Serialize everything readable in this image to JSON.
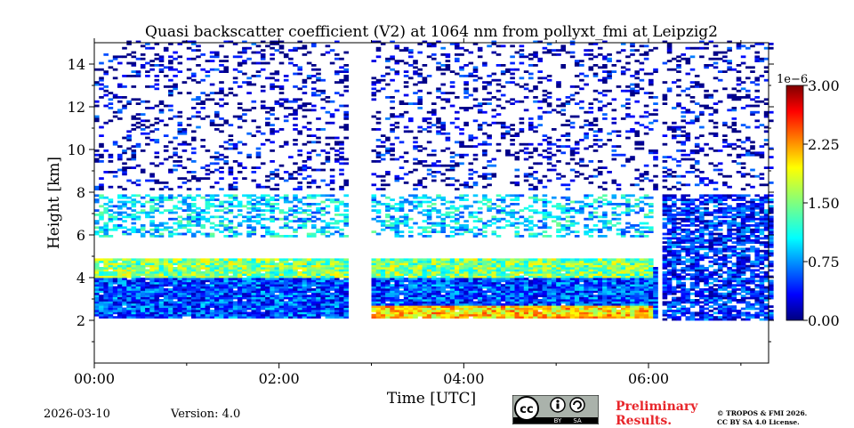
{
  "chart_data": {
    "type": "heatmap",
    "title": "Quasi backscatter coefficient (V2) at 1064 nm from pollyxt_fmi at Leipzig2",
    "xlabel": "Time [UTC]",
    "ylabel": "Height [km]",
    "x_unit": "hours UTC",
    "xlim": [
      0,
      7.3
    ],
    "ylim": [
      0,
      15
    ],
    "x_ticks": [
      0,
      2,
      4,
      6
    ],
    "x_tick_labels": [
      "00:00",
      "02:00",
      "04:00",
      "06:00"
    ],
    "y_ticks": [
      2,
      4,
      6,
      8,
      10,
      12,
      14
    ],
    "y_tick_labels": [
      "2",
      "4",
      "6",
      "8",
      "10",
      "12",
      "14"
    ],
    "colorbar": {
      "min": 0.0,
      "max": 3.0,
      "exponent_label": "1e−6",
      "ticks": [
        0.0,
        0.75,
        1.5,
        2.25,
        3.0
      ],
      "tick_labels": [
        "0.00",
        "0.75",
        "1.50",
        "2.25",
        "3.00"
      ],
      "colormap": "jet"
    },
    "data_gaps_hours": [
      [
        2.7,
        2.95
      ],
      [
        6.08,
        6.1
      ]
    ],
    "features": [
      {
        "name": "boundary-layer",
        "t_start": 0.0,
        "t_end": 6.08,
        "h_bottom": 2.1,
        "h_top": 4.4,
        "mean_value": 0.6
      },
      {
        "name": "lower-enhanced-layer",
        "t_start": 2.95,
        "t_end": 6.0,
        "h_bottom": 2.1,
        "h_top": 2.7,
        "mean_value": 2.0
      },
      {
        "name": "boundary-layer-top",
        "t_start": 0.0,
        "t_end": 6.0,
        "h_bottom": 4.0,
        "h_top": 4.8,
        "mean_value": 1.5
      },
      {
        "name": "aerosol-layer-6km",
        "t_start": 0.0,
        "t_end": 6.0,
        "h_bottom": 5.8,
        "h_top": 7.8,
        "mean_value": 1.0
      },
      {
        "name": "cloud-layer-late",
        "t_start": 6.1,
        "t_end": 7.3,
        "h_bottom": 2.0,
        "h_top": 7.8,
        "mean_value": 0.5
      },
      {
        "name": "noise-aloft",
        "t_start": 0.0,
        "t_end": 7.3,
        "h_bottom": 8.0,
        "h_top": 15.0,
        "mean_value": 0.3
      }
    ]
  },
  "footer": {
    "date": "2026-03-10",
    "version": "Version: 4.0",
    "preliminary_line1": "Preliminary",
    "preliminary_line2": "Results.",
    "copyright_line1": "© TROPOS & FMI 2026.",
    "copyright_line2": "CC BY SA 4.0 License.",
    "license_badge": {
      "cc": "cc",
      "by": "BY",
      "sa": "SA"
    }
  }
}
